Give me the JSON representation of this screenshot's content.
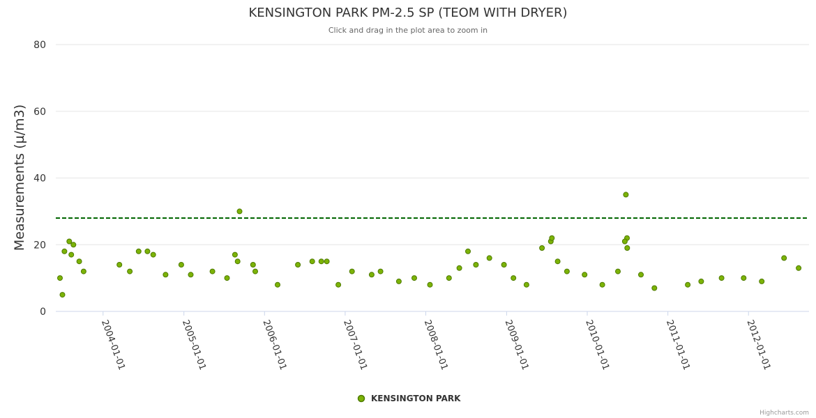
{
  "chart_data": {
    "type": "scatter",
    "title": "KENSINGTON PARK PM-2.5 SP (TEOM WITH DRYER)",
    "subtitle": "Click and drag in the plot area to zoom in",
    "ylabel": "Measurements (µ/m3)",
    "xlabel": "",
    "ylim": [
      0,
      80
    ],
    "yticks": [
      "0",
      "20",
      "40",
      "60",
      "80"
    ],
    "xlim": [
      "2003-06-01",
      "2012-10-01"
    ],
    "xticks": [
      "2004-01-01",
      "2005-01-01",
      "2006-01-01",
      "2007-01-01",
      "2008-01-01",
      "2009-01-01",
      "2010-01-01",
      "2011-01-01",
      "2012-01-01"
    ],
    "grid": true,
    "legend_position": "bottom-center",
    "reference_line": {
      "y": 28,
      "style": "dashed",
      "color": "#006400"
    },
    "series": [
      {
        "name": "KENSINGTON PARK",
        "color": "#7cb307",
        "marker_edge_color": "#4e7a00",
        "points": [
          [
            "2003-08-01",
            21
          ],
          [
            "2003-08-20",
            20
          ],
          [
            "2003-07-10",
            18
          ],
          [
            "2003-09-15",
            15
          ],
          [
            "2003-06-20",
            10
          ],
          [
            "2003-07-01",
            5
          ],
          [
            "2003-08-10",
            17
          ],
          [
            "2003-10-05",
            12
          ],
          [
            "2004-05-01",
            12
          ],
          [
            "2004-06-10",
            18
          ],
          [
            "2004-07-20",
            18
          ],
          [
            "2004-08-15",
            17
          ],
          [
            "2004-03-15",
            14
          ],
          [
            "2004-10-10",
            11
          ],
          [
            "2004-12-20",
            14
          ],
          [
            "2005-02-01",
            11
          ],
          [
            "2005-05-10",
            12
          ],
          [
            "2005-07-15",
            10
          ],
          [
            "2005-08-20",
            17
          ],
          [
            "2005-09-10",
            30
          ],
          [
            "2005-09-01",
            15
          ],
          [
            "2005-11-10",
            14
          ],
          [
            "2005-11-20",
            12
          ],
          [
            "2006-03-01",
            8
          ],
          [
            "2006-06-01",
            14
          ],
          [
            "2006-08-05",
            15
          ],
          [
            "2006-09-15",
            15
          ],
          [
            "2006-10-10",
            15
          ],
          [
            "2006-12-01",
            8
          ],
          [
            "2007-02-01",
            12
          ],
          [
            "2007-05-01",
            11
          ],
          [
            "2007-06-10",
            12
          ],
          [
            "2007-09-01",
            9
          ],
          [
            "2007-11-10",
            10
          ],
          [
            "2008-01-20",
            8
          ],
          [
            "2008-04-15",
            10
          ],
          [
            "2008-06-01",
            13
          ],
          [
            "2008-07-10",
            18
          ],
          [
            "2008-08-15",
            14
          ],
          [
            "2008-10-15",
            16
          ],
          [
            "2008-12-20",
            14
          ],
          [
            "2009-02-01",
            10
          ],
          [
            "2009-04-01",
            8
          ],
          [
            "2009-06-10",
            19
          ],
          [
            "2009-07-20",
            21
          ],
          [
            "2009-07-25",
            22
          ],
          [
            "2009-08-20",
            15
          ],
          [
            "2009-10-01",
            12
          ],
          [
            "2009-12-20",
            11
          ],
          [
            "2010-03-10",
            8
          ],
          [
            "2010-05-20",
            12
          ],
          [
            "2010-06-25",
            35
          ],
          [
            "2010-06-30",
            22
          ],
          [
            "2010-06-20",
            21
          ],
          [
            "2010-07-01",
            19
          ],
          [
            "2010-09-01",
            11
          ],
          [
            "2010-11-01",
            7
          ],
          [
            "2011-04-01",
            8
          ],
          [
            "2011-06-01",
            9
          ],
          [
            "2011-09-01",
            10
          ],
          [
            "2011-12-10",
            10
          ],
          [
            "2012-03-01",
            9
          ],
          [
            "2012-06-10",
            16
          ],
          [
            "2012-08-15",
            13
          ]
        ]
      }
    ]
  },
  "credits": "Highcharts.com"
}
